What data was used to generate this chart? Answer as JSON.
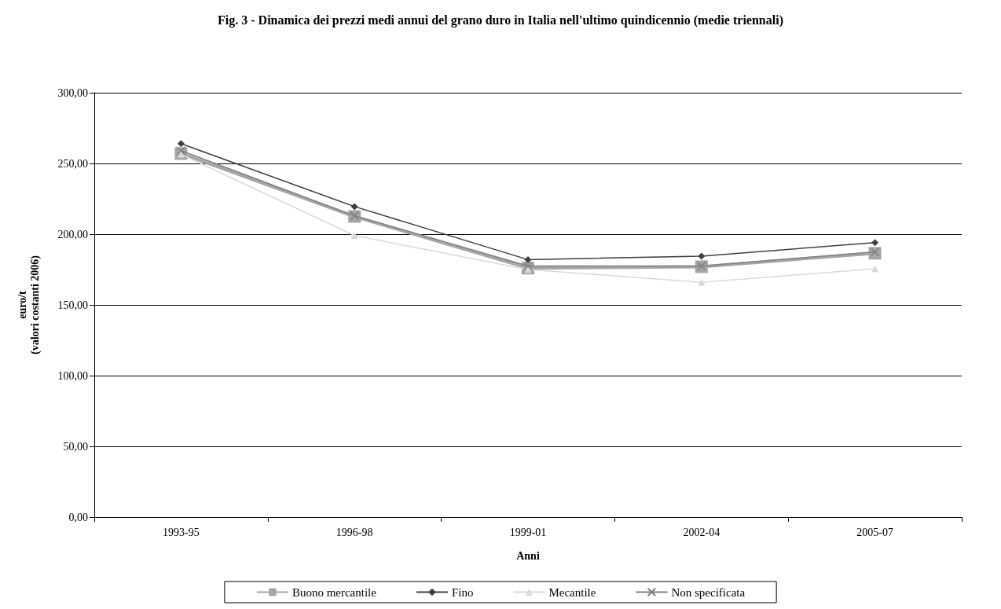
{
  "chart_data": {
    "type": "line",
    "title": "Fig. 3 - Dinamica dei prezzi medi annui del grano duro in Italia nell'ultimo quindicennio (medie triennali)",
    "xlabel": "Anni",
    "ylabel": "euro/t\n(valori costanti 2006)",
    "categories": [
      "1993-95",
      "1996-98",
      "1999-01",
      "2002-04",
      "2005-07"
    ],
    "series": [
      {
        "name": "Buono mercantile",
        "color": "#a6a6a6",
        "marker": "square",
        "values": [
          257,
          212.5,
          176,
          177,
          186.5
        ]
      },
      {
        "name": "Fino",
        "color": "#404040",
        "marker": "diamond",
        "values": [
          264,
          219.5,
          182,
          184.5,
          194
        ]
      },
      {
        "name": "Mecantile",
        "color": "#d9d9d9",
        "marker": "triangle",
        "values": [
          256.5,
          199,
          175,
          166,
          175.5
        ]
      },
      {
        "name": "Non specificata",
        "color": "#808080",
        "marker": "cross",
        "values": [
          259,
          213,
          177.5,
          177.5,
          187.5
        ]
      }
    ],
    "ylim": [
      0,
      300
    ],
    "yticks": [
      {
        "value": 0,
        "label": "0,00"
      },
      {
        "value": 50,
        "label": "50,00"
      },
      {
        "value": 100,
        "label": "100,00"
      },
      {
        "value": 150,
        "label": "150,00"
      },
      {
        "value": 200,
        "label": "200,00"
      },
      {
        "value": 250,
        "label": "250,00"
      },
      {
        "value": 300,
        "label": "300,00"
      }
    ],
    "grid": "y",
    "legend": "bottom"
  }
}
